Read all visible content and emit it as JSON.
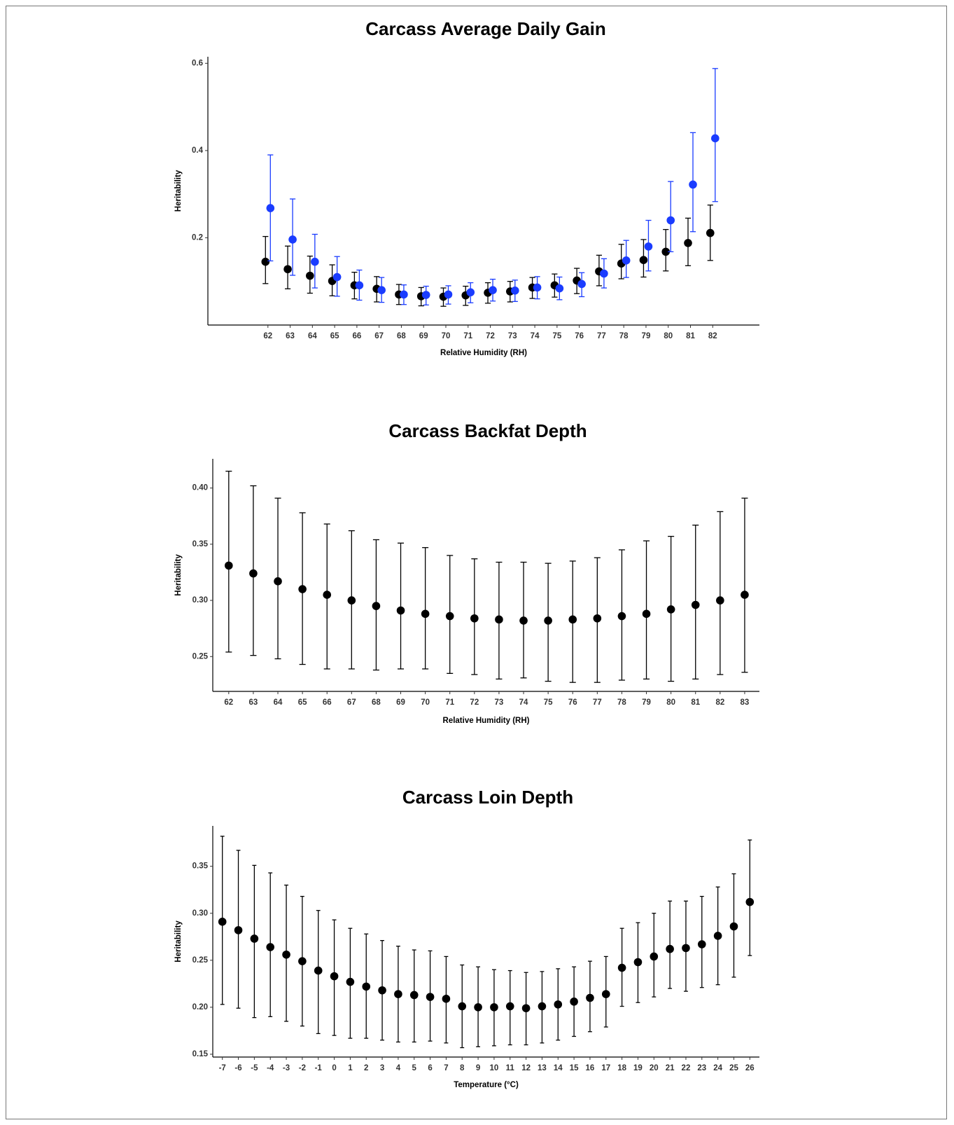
{
  "chart_data": [
    {
      "type": "scatter",
      "title": "Carcass Average Daily Gain",
      "xlabel": "Relative Humidity (RH)",
      "ylabel": "Heritability",
      "x": [
        62,
        63,
        64,
        65,
        66,
        67,
        68,
        69,
        70,
        71,
        72,
        73,
        74,
        75,
        76,
        77,
        78,
        79,
        80,
        81,
        82
      ],
      "xlim": [
        59.3,
        84.1
      ],
      "ylim": [
        0.0,
        0.615
      ],
      "yticks": [
        0.2,
        0.4,
        0.6
      ],
      "ytick_labels": [
        "0.2",
        "0.4",
        "0.6"
      ],
      "error_bars": true,
      "grid": false,
      "series": [
        {
          "color": "#000000",
          "values": [
            0.145,
            0.128,
            0.113,
            0.101,
            0.091,
            0.083,
            0.07,
            0.066,
            0.065,
            0.068,
            0.074,
            0.077,
            0.086,
            0.091,
            0.102,
            0.123,
            0.141,
            0.149,
            0.168,
            0.188,
            0.211
          ],
          "lower": [
            0.095,
            0.083,
            0.073,
            0.067,
            0.06,
            0.053,
            0.047,
            0.044,
            0.043,
            0.045,
            0.05,
            0.053,
            0.061,
            0.064,
            0.072,
            0.09,
            0.106,
            0.11,
            0.124,
            0.136,
            0.148
          ],
          "upper": [
            0.203,
            0.181,
            0.158,
            0.138,
            0.121,
            0.111,
            0.093,
            0.086,
            0.085,
            0.089,
            0.097,
            0.1,
            0.109,
            0.117,
            0.13,
            0.16,
            0.185,
            0.196,
            0.219,
            0.245,
            0.275
          ]
        },
        {
          "color": "#1a3cff",
          "values": [
            0.268,
            0.196,
            0.145,
            0.11,
            0.091,
            0.08,
            0.07,
            0.069,
            0.07,
            0.075,
            0.08,
            0.079,
            0.086,
            0.084,
            0.094,
            0.118,
            0.148,
            0.18,
            0.24,
            0.322,
            0.428
          ],
          "lower": [
            0.147,
            0.114,
            0.085,
            0.066,
            0.057,
            0.052,
            0.047,
            0.046,
            0.048,
            0.051,
            0.055,
            0.054,
            0.06,
            0.058,
            0.065,
            0.085,
            0.109,
            0.124,
            0.168,
            0.214,
            0.283
          ],
          "upper": [
            0.39,
            0.289,
            0.208,
            0.157,
            0.126,
            0.109,
            0.092,
            0.089,
            0.09,
            0.097,
            0.105,
            0.103,
            0.111,
            0.11,
            0.12,
            0.152,
            0.194,
            0.24,
            0.329,
            0.441,
            0.588
          ]
        }
      ]
    },
    {
      "type": "scatter",
      "title": "Carcass Backfat Depth",
      "xlabel": "Relative Humidity (RH)",
      "ylabel": "Heritability",
      "x": [
        62,
        63,
        64,
        65,
        66,
        67,
        68,
        69,
        70,
        71,
        72,
        73,
        74,
        75,
        76,
        77,
        78,
        79,
        80,
        81,
        82,
        83
      ],
      "xlim": [
        61.35,
        83.6
      ],
      "ylim": [
        0.219,
        0.426
      ],
      "yticks": [
        0.25,
        0.3,
        0.35,
        0.4
      ],
      "ytick_labels": [
        "0.25",
        "0.30",
        "0.35",
        "0.40"
      ],
      "error_bars": true,
      "grid": false,
      "series": [
        {
          "color": "#000000",
          "values": [
            0.331,
            0.324,
            0.317,
            0.31,
            0.305,
            0.3,
            0.295,
            0.291,
            0.288,
            0.286,
            0.284,
            0.283,
            0.282,
            0.282,
            0.283,
            0.284,
            0.286,
            0.288,
            0.292,
            0.296,
            0.3,
            0.305
          ],
          "lower": [
            0.254,
            0.251,
            0.248,
            0.243,
            0.239,
            0.239,
            0.238,
            0.239,
            0.239,
            0.235,
            0.234,
            0.23,
            0.231,
            0.228,
            0.227,
            0.227,
            0.229,
            0.23,
            0.228,
            0.23,
            0.234,
            0.236
          ],
          "upper": [
            0.415,
            0.402,
            0.391,
            0.378,
            0.368,
            0.362,
            0.354,
            0.351,
            0.347,
            0.34,
            0.337,
            0.334,
            0.334,
            0.333,
            0.335,
            0.338,
            0.345,
            0.353,
            0.357,
            0.367,
            0.379,
            0.391
          ]
        }
      ]
    },
    {
      "type": "scatter",
      "title": "Carcass Loin Depth",
      "xlabel": "Temperature (°C)",
      "ylabel": "Heritability",
      "x": [
        -7,
        -6,
        -5,
        -4,
        -3,
        -2,
        -1,
        0,
        1,
        2,
        3,
        4,
        5,
        6,
        7,
        8,
        9,
        10,
        11,
        12,
        13,
        14,
        15,
        16,
        17,
        18,
        19,
        20,
        21,
        22,
        23,
        24,
        25,
        26
      ],
      "xlim": [
        -7.6,
        26.6
      ],
      "ylim": [
        0.147,
        0.393
      ],
      "yticks": [
        0.15,
        0.2,
        0.25,
        0.3,
        0.35
      ],
      "ytick_labels": [
        "0.15",
        "0.20",
        "0.25",
        "0.30",
        "0.35"
      ],
      "error_bars": true,
      "grid": false,
      "series": [
        {
          "color": "#000000",
          "values": [
            0.291,
            0.282,
            0.273,
            0.264,
            0.256,
            0.249,
            0.239,
            0.233,
            0.227,
            0.222,
            0.218,
            0.214,
            0.213,
            0.211,
            0.209,
            0.201,
            0.2,
            0.2,
            0.201,
            0.199,
            0.201,
            0.203,
            0.206,
            0.21,
            0.214,
            0.242,
            0.248,
            0.254,
            0.262,
            0.263,
            0.267,
            0.276,
            0.286,
            0.312
          ],
          "lower": [
            0.203,
            0.199,
            0.189,
            0.19,
            0.185,
            0.18,
            0.172,
            0.17,
            0.167,
            0.167,
            0.165,
            0.163,
            0.163,
            0.164,
            0.162,
            0.157,
            0.158,
            0.159,
            0.16,
            0.16,
            0.162,
            0.165,
            0.169,
            0.174,
            0.179,
            0.201,
            0.205,
            0.211,
            0.22,
            0.217,
            0.221,
            0.224,
            0.232,
            0.255
          ],
          "upper": [
            0.382,
            0.367,
            0.351,
            0.343,
            0.33,
            0.318,
            0.303,
            0.293,
            0.284,
            0.278,
            0.271,
            0.265,
            0.261,
            0.26,
            0.254,
            0.245,
            0.243,
            0.24,
            0.239,
            0.237,
            0.238,
            0.241,
            0.243,
            0.249,
            0.254,
            0.284,
            0.29,
            0.3,
            0.313,
            0.313,
            0.318,
            0.328,
            0.342,
            0.378
          ]
        }
      ]
    }
  ]
}
